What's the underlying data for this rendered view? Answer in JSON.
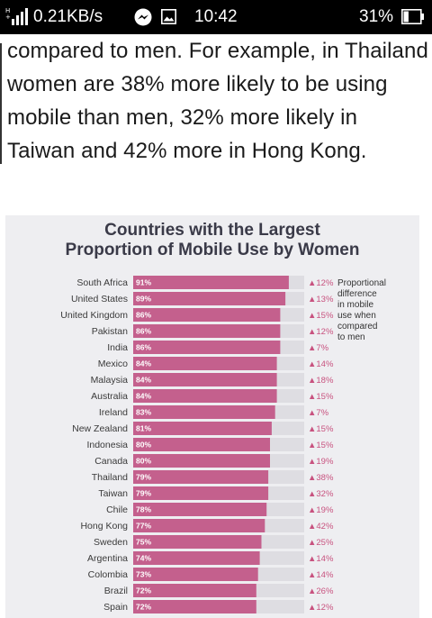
{
  "status_bar": {
    "network_icon": "signal-bars-icon",
    "speed": "0.21KB/s",
    "time": "10:42",
    "battery_percent": "31%",
    "battery_level": 0.31
  },
  "article": {
    "text": "compared to men. For example, in Thailand women are 38% more likely to be using mobile than men, 32% more likely in Taiwan and 42% more in Hong Kong."
  },
  "colors": {
    "bar": "#c4608d",
    "track": "#dedde2",
    "delta": "#c8527f",
    "background": "#eeeef1"
  },
  "chart_data": {
    "type": "bar",
    "orientation": "horizontal",
    "title_line1": "Countries with the Largest",
    "title_line2": "Proportion of Mobile Use by Women",
    "legend": "Proportional difference in mobile use when compared to men",
    "legend_lines": [
      "Proportional",
      "difference",
      "in mobile",
      "use when",
      "compared",
      "to men"
    ],
    "xlim": [
      0,
      100
    ],
    "grid": false,
    "categories": [
      "South Africa",
      "United States",
      "United Kingdom",
      "Pakistan",
      "India",
      "Mexico",
      "Malaysia",
      "Australia",
      "Ireland",
      "New Zealand",
      "Indonesia",
      "Canada",
      "Thailand",
      "Taiwan",
      "Chile",
      "Hong Kong",
      "Sweden",
      "Argentina",
      "Colombia",
      "Brazil",
      "Spain"
    ],
    "values": [
      91,
      89,
      86,
      86,
      86,
      84,
      84,
      84,
      83,
      81,
      80,
      80,
      79,
      79,
      78,
      77,
      75,
      74,
      73,
      72,
      72
    ],
    "value_labels": [
      "91%",
      "89%",
      "86%",
      "86%",
      "86%",
      "84%",
      "84%",
      "84%",
      "83%",
      "81%",
      "80%",
      "80%",
      "79%",
      "79%",
      "78%",
      "77%",
      "75%",
      "74%",
      "73%",
      "72%",
      "72%"
    ],
    "difference": [
      12,
      13,
      15,
      12,
      7,
      14,
      18,
      15,
      7,
      15,
      15,
      19,
      38,
      32,
      19,
      42,
      25,
      14,
      14,
      26,
      12
    ],
    "difference_labels": [
      "▲12%",
      "▲13%",
      "▲15%",
      "▲12%",
      "▲7%",
      "▲14%",
      "▲18%",
      "▲15%",
      "▲7%",
      "▲15%",
      "▲15%",
      "▲19%",
      "▲38%",
      "▲32%",
      "▲19%",
      "▲42%",
      "▲25%",
      "▲14%",
      "▲14%",
      "▲26%",
      "▲12%"
    ]
  }
}
